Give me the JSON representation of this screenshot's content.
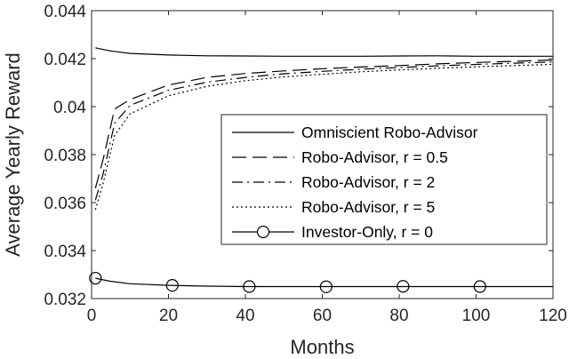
{
  "chart_data": {
    "type": "line",
    "title": "",
    "xlabel": "Months",
    "ylabel": "Average Yearly Reward",
    "xlim": [
      0,
      120
    ],
    "ylim": [
      0.032,
      0.044
    ],
    "xticks": [
      0,
      20,
      40,
      60,
      80,
      100,
      120
    ],
    "yticks": [
      0.032,
      0.034,
      0.036,
      0.038,
      0.04,
      0.042,
      0.044
    ],
    "ytick_labels": [
      "0.032",
      "0.034",
      "0.036",
      "0.038",
      "0.04",
      "0.042",
      "0.044"
    ],
    "grid": false,
    "legend_position": "center-right",
    "series": [
      {
        "name": "Omniscient Robo-Advisor",
        "style": "solid",
        "x": [
          1,
          5,
          10,
          20,
          30,
          40,
          50,
          60,
          70,
          80,
          90,
          100,
          110,
          120
        ],
        "y": [
          0.04245,
          0.04232,
          0.04222,
          0.04215,
          0.04212,
          0.04211,
          0.0421,
          0.0421,
          0.0421,
          0.04211,
          0.04212,
          0.0421,
          0.0421,
          0.0421
        ]
      },
      {
        "name": "Robo-Advisor, r = 0.5",
        "style": "dash",
        "x": [
          1,
          3,
          6,
          10,
          20,
          30,
          40,
          50,
          60,
          70,
          80,
          90,
          100,
          110,
          120
        ],
        "y": [
          0.0366,
          0.0378,
          0.0399,
          0.0403,
          0.0409,
          0.04122,
          0.04138,
          0.04149,
          0.04158,
          0.04165,
          0.04171,
          0.04178,
          0.04184,
          0.04189,
          0.04194
        ]
      },
      {
        "name": "Robo-Advisor, r = 2",
        "style": "dashdot",
        "x": [
          1,
          3,
          6,
          10,
          20,
          30,
          40,
          50,
          60,
          70,
          80,
          90,
          100,
          110,
          120
        ],
        "y": [
          0.0361,
          0.0372,
          0.0393,
          0.04005,
          0.04068,
          0.04102,
          0.04122,
          0.04137,
          0.04147,
          0.04156,
          0.04163,
          0.0417,
          0.04176,
          0.04181,
          0.04186
        ]
      },
      {
        "name": "Robo-Advisor, r = 5",
        "style": "dot",
        "x": [
          1,
          3,
          6,
          10,
          20,
          30,
          40,
          50,
          60,
          70,
          80,
          90,
          100,
          110,
          120
        ],
        "y": [
          0.0357,
          0.0368,
          0.0388,
          0.0397,
          0.04045,
          0.04085,
          0.04108,
          0.04124,
          0.04135,
          0.04145,
          0.04153,
          0.0416,
          0.04166,
          0.04171,
          0.04176
        ]
      },
      {
        "name": "Investor-Only, r = 0",
        "style": "solid-circle",
        "x": [
          1,
          5,
          10,
          20,
          30,
          40,
          50,
          60,
          70,
          80,
          90,
          100,
          110,
          120
        ],
        "y": [
          0.03285,
          0.03272,
          0.03262,
          0.03255,
          0.03252,
          0.0325,
          0.0325,
          0.0325,
          0.0325,
          0.0325,
          0.0325,
          0.0325,
          0.0325,
          0.0325
        ],
        "markers_x": [
          1,
          21,
          41,
          61,
          81,
          101
        ],
        "markers_y": [
          0.03285,
          0.03255,
          0.0325,
          0.03249,
          0.03251,
          0.0325
        ]
      }
    ]
  }
}
